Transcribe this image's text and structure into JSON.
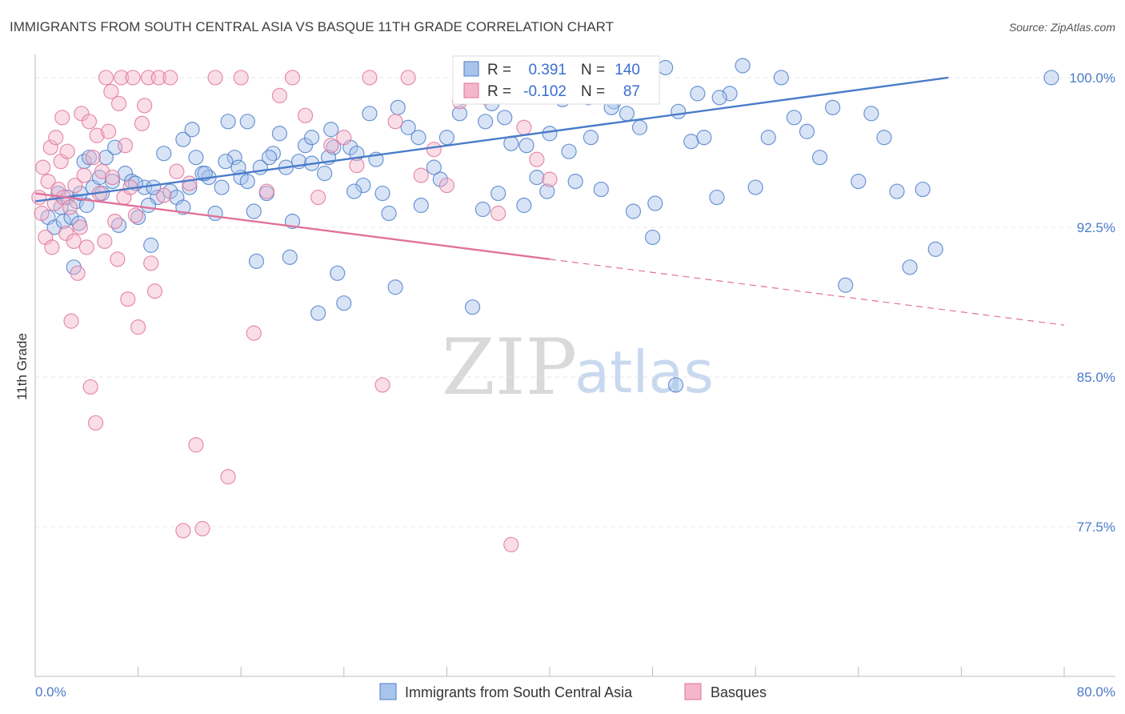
{
  "colors": {
    "blue": "#4a7cc9",
    "pink": "#e0729a",
    "blue_fill": "#a9c4ec",
    "pink_fill": "#f4b6c9",
    "grid": "#e6e6e6"
  },
  "chart_data": {
    "type": "scatter",
    "title": "IMMIGRANTS FROM SOUTH CENTRAL ASIA VS BASQUE 11TH GRADE CORRELATION CHART",
    "source": "Source: ZipAtlas.com",
    "xlabel": "",
    "ylabel": "11th Grade",
    "xlim": [
      0,
      80
    ],
    "ylim": [
      70,
      101
    ],
    "x_tick_labels": [
      "0.0%",
      "80.0%"
    ],
    "y_ticks": [
      77.5,
      85.0,
      92.5,
      100.0
    ],
    "y_tick_labels": [
      "77.5%",
      "85.0%",
      "92.5%",
      "100.0%"
    ],
    "grid": "horizontal dashed",
    "legend_placement": "bottom-center",
    "stats": [
      {
        "r_label": "R =",
        "r_value": "0.391",
        "n_label": "N =",
        "n_value": "140"
      },
      {
        "r_label": "R =",
        "r_value": "-0.102",
        "n_label": "N =",
        "n_value": "87"
      }
    ],
    "watermark": {
      "zip": "ZIP",
      "atlas": "atlas"
    },
    "series": [
      {
        "name": "Immigrants from South Central Asia",
        "color": "#4a7cc9",
        "trend": {
          "x": [
            0,
            71
          ],
          "y": [
            93.8,
            100.0
          ]
        },
        "x": [
          1.0,
          1.5,
          1.8,
          2.0,
          2.2,
          2.5,
          3.0,
          3.2,
          3.5,
          3.8,
          4.0,
          4.5,
          5.0,
          5.5,
          6.0,
          6.5,
          7.0,
          7.5,
          8.0,
          8.5,
          9.0,
          9.5,
          10.0,
          10.5,
          11.0,
          11.5,
          12.0,
          12.5,
          13.0,
          13.5,
          14.0,
          14.5,
          15.0,
          15.5,
          16.0,
          16.5,
          17.0,
          17.5,
          18.0,
          18.5,
          19.0,
          19.5,
          20.0,
          20.5,
          21.0,
          21.5,
          22.0,
          22.5,
          23.0,
          23.5,
          24.0,
          24.5,
          25.0,
          25.5,
          26.0,
          27.0,
          28.0,
          29.0,
          30.0,
          31.0,
          32.0,
          33.0,
          34.0,
          35.0,
          36.0,
          37.0,
          38.0,
          39.0,
          40.0,
          41.0,
          42.0,
          43.0,
          44.0,
          45.0,
          46.0,
          47.0,
          48.0,
          49.0,
          50.0,
          51.0,
          52.0,
          53.0,
          54.0,
          55.0,
          56.0,
          57.0,
          58.0,
          59.0,
          60.0,
          61.0,
          62.0,
          63.0,
          64.0,
          65.0,
          66.0,
          67.0,
          68.0,
          69.0,
          70.0,
          79.0,
          2.8,
          4.2,
          6.2,
          7.8,
          9.2,
          11.5,
          13.2,
          14.8,
          16.5,
          18.2,
          19.8,
          21.5,
          23.2,
          24.8,
          26.5,
          28.2,
          29.8,
          31.5,
          33.2,
          34.8,
          36.5,
          38.2,
          39.8,
          41.5,
          43.2,
          44.8,
          46.5,
          48.2,
          49.8,
          51.5,
          53.2,
          3.4,
          5.2,
          8.8,
          12.2,
          15.8,
          17.2,
          22.8,
          27.5,
          35.5
        ],
        "y": [
          93.0,
          92.5,
          94.2,
          93.5,
          92.8,
          94.0,
          90.5,
          93.8,
          94.2,
          95.8,
          93.6,
          94.5,
          95.0,
          96.0,
          94.8,
          92.6,
          95.2,
          94.8,
          93.0,
          94.5,
          91.6,
          94.0,
          96.2,
          94.3,
          94.0,
          93.5,
          94.5,
          96.0,
          95.2,
          95.0,
          93.2,
          94.5,
          97.8,
          96.0,
          95.0,
          94.8,
          93.3,
          95.5,
          94.2,
          96.2,
          97.2,
          95.5,
          92.8,
          95.8,
          96.6,
          97.0,
          88.2,
          95.2,
          97.4,
          90.2,
          88.7,
          96.5,
          96.2,
          94.6,
          98.2,
          94.2,
          89.5,
          97.5,
          93.6,
          95.5,
          97.0,
          98.2,
          88.5,
          97.8,
          94.2,
          96.7,
          93.6,
          95.0,
          97.2,
          98.9,
          94.8,
          99.0,
          94.4,
          98.8,
          98.2,
          97.5,
          92.0,
          100.5,
          98.3,
          96.8,
          97.0,
          94.0,
          99.2,
          100.6,
          94.5,
          97.0,
          100.0,
          98.0,
          97.3,
          96.0,
          98.5,
          89.6,
          94.8,
          98.2,
          97.0,
          94.3,
          90.5,
          94.4,
          91.4,
          100.0,
          93.0,
          96.0,
          96.5,
          94.7,
          94.5,
          96.9,
          95.2,
          95.8,
          97.8,
          96.0,
          91.0,
          95.7,
          96.5,
          94.3,
          95.9,
          98.5,
          97.0,
          94.9,
          99.0,
          93.4,
          98.0,
          96.6,
          94.3,
          96.3,
          97.0,
          98.5,
          93.3,
          93.7,
          84.6,
          99.2,
          99.0,
          92.7,
          94.2,
          93.6,
          97.4,
          95.5,
          90.8,
          96.0,
          93.2,
          98.7
        ]
      },
      {
        "name": "Basques",
        "color": "#e0729a",
        "trend": {
          "x": [
            0,
            40
          ],
          "y": [
            94.2,
            90.9
          ]
        },
        "trend_dashed": {
          "x": [
            40,
            80
          ],
          "y": [
            90.9,
            87.6
          ]
        },
        "x": [
          0.3,
          0.5,
          0.6,
          0.8,
          1.0,
          1.2,
          1.3,
          1.5,
          1.6,
          1.8,
          2.0,
          2.1,
          2.2,
          2.4,
          2.5,
          2.7,
          2.8,
          3.0,
          3.1,
          3.3,
          3.5,
          3.6,
          3.8,
          4.0,
          4.2,
          4.3,
          4.5,
          4.7,
          4.8,
          5.0,
          5.2,
          5.4,
          5.5,
          5.7,
          5.9,
          6.0,
          6.2,
          6.4,
          6.5,
          6.7,
          6.9,
          7.0,
          7.2,
          7.4,
          7.6,
          7.8,
          8.0,
          8.3,
          8.5,
          8.8,
          9.0,
          9.3,
          9.6,
          10.0,
          10.5,
          11.0,
          11.5,
          12.0,
          12.5,
          13.0,
          14.0,
          15.0,
          16.0,
          17.0,
          18.0,
          19.0,
          20.0,
          21.0,
          22.0,
          23.0,
          24.0,
          25.0,
          26.0,
          27.0,
          28.0,
          29.0,
          30.0,
          31.0,
          32.0,
          33.0,
          34.0,
          35.0,
          36.0,
          37.0,
          38.0,
          39.0,
          40.0
        ],
        "y": [
          94.0,
          93.2,
          95.5,
          92.0,
          94.8,
          96.5,
          91.5,
          93.7,
          97.0,
          94.4,
          95.8,
          98.0,
          94.0,
          92.2,
          96.3,
          93.5,
          87.8,
          91.8,
          94.6,
          90.2,
          92.5,
          98.2,
          95.1,
          91.5,
          97.8,
          84.5,
          96.0,
          82.7,
          97.1,
          94.2,
          95.3,
          91.8,
          100.0,
          97.3,
          99.3,
          95.0,
          92.8,
          90.9,
          98.7,
          100.0,
          94.0,
          96.6,
          88.9,
          94.5,
          100.0,
          93.1,
          87.5,
          97.7,
          98.6,
          100.0,
          90.7,
          89.3,
          100.0,
          94.1,
          100.0,
          95.3,
          77.3,
          94.7,
          81.6,
          77.4,
          100.0,
          80.0,
          100.0,
          87.2,
          94.3,
          99.1,
          100.0,
          98.1,
          94.0,
          96.6,
          97.0,
          95.6,
          100.0,
          84.6,
          97.8,
          100.0,
          95.1,
          96.4,
          94.6,
          98.8,
          100.0,
          99.0,
          93.2,
          76.6,
          97.5,
          95.9,
          94.9
        ]
      }
    ]
  }
}
